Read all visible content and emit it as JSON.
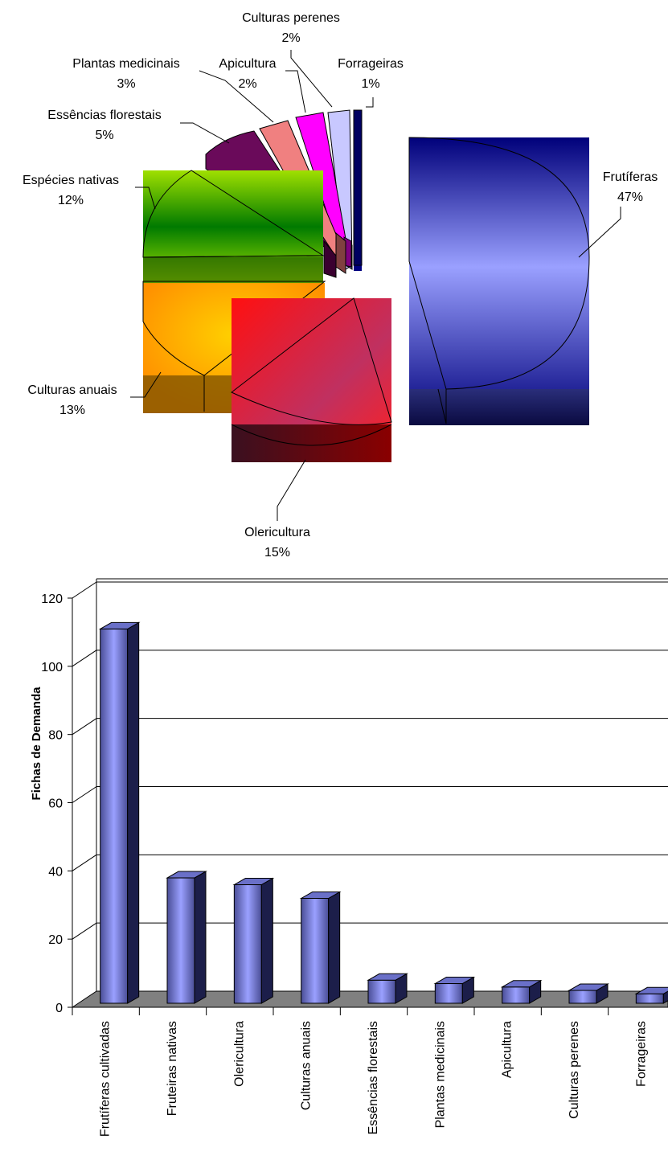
{
  "chart_data": [
    {
      "type": "pie",
      "title": "",
      "slices": [
        {
          "label": "Frutíferas",
          "percent_label": "47%",
          "value": 47,
          "color": "#5a64c8"
        },
        {
          "label": "Olericultura",
          "percent_label": "15%",
          "value": 15,
          "color": "#e8203a"
        },
        {
          "label": "Culturas anuais",
          "percent_label": "13%",
          "value": 13,
          "color": "#ffa500"
        },
        {
          "label": "Espécies nativas",
          "percent_label": "12%",
          "value": 12,
          "color": "#44a800"
        },
        {
          "label": "Essências florestais",
          "percent_label": "5%",
          "value": 5,
          "color": "#6a0a5a"
        },
        {
          "label": "Plantas medicinais",
          "percent_label": "3%",
          "value": 3,
          "color": "#f08080"
        },
        {
          "label": "Apicultura",
          "percent_label": "2%",
          "value": 2,
          "color": "#ff00ff"
        },
        {
          "label": "Culturas perenes",
          "percent_label": "2%",
          "value": 2,
          "color": "#ccccff"
        },
        {
          "label": "Forrageiras",
          "percent_label": "1%",
          "value": 1,
          "color": "#000080"
        }
      ]
    },
    {
      "type": "bar",
      "title": "",
      "xlabel": "",
      "ylabel": "Fichas de Demanda",
      "ylim": [
        0,
        120
      ],
      "yticks": [
        "0",
        "20",
        "40",
        "60",
        "80",
        "100",
        "120"
      ],
      "categories": [
        "Frutíferas cultivadas",
        "Fruteiras nativas",
        "Olericultura",
        "Culturas anuais",
        "Essências florestais",
        "Plantas medicinais",
        "Apicultura",
        "Culturas perenes",
        "Forrageiras"
      ],
      "values": [
        110,
        37,
        35,
        31,
        7,
        6,
        5,
        4,
        3
      ],
      "bar_color": "#8890e0",
      "grid": true
    }
  ]
}
